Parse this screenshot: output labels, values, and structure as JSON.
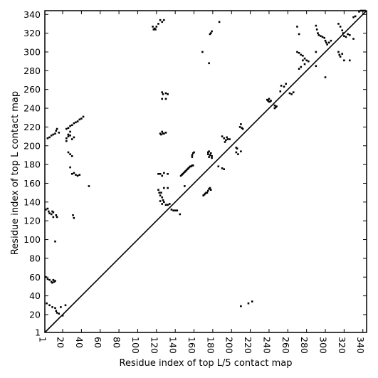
{
  "chart_data": {
    "type": "scatter",
    "title": "",
    "xlabel": "Residue index of top L/5 contact map",
    "ylabel": "Residue index of top L contact map",
    "xlim": [
      1,
      344
    ],
    "ylim": [
      1,
      344
    ],
    "grid": false,
    "x_ticks": [
      1,
      20,
      40,
      60,
      80,
      100,
      120,
      140,
      160,
      180,
      200,
      220,
      240,
      260,
      280,
      300,
      320,
      340
    ],
    "y_ticks": [
      1,
      20,
      40,
      60,
      80,
      100,
      120,
      140,
      160,
      180,
      200,
      220,
      240,
      260,
      280,
      300,
      320,
      340
    ],
    "diagonal": true,
    "marker_color": "#000000",
    "upper_triangle_points": [
      [
        116,
        327
      ],
      [
        118,
        325
      ],
      [
        120,
        327
      ],
      [
        122,
        330
      ],
      [
        124,
        334
      ],
      [
        126,
        332
      ],
      [
        128,
        334
      ],
      [
        119,
        324
      ],
      [
        117,
        324
      ],
      [
        169,
        300
      ],
      [
        176,
        288
      ],
      [
        177,
        319
      ],
      [
        178,
        320
      ],
      [
        179,
        322
      ],
      [
        187,
        332
      ],
      [
        125,
        212
      ],
      [
        126,
        215
      ],
      [
        128,
        213
      ],
      [
        130,
        214
      ],
      [
        127,
        213
      ],
      [
        124,
        213
      ],
      [
        126,
        257
      ],
      [
        127,
        255
      ],
      [
        130,
        256
      ],
      [
        132,
        255
      ],
      [
        126,
        250
      ],
      [
        130,
        250
      ],
      [
        176,
        188
      ],
      [
        177,
        190
      ],
      [
        178,
        192
      ],
      [
        175,
        193
      ],
      [
        176,
        194
      ],
      [
        175,
        191
      ],
      [
        179,
        189
      ],
      [
        179,
        187
      ],
      [
        190,
        210
      ],
      [
        192,
        208
      ],
      [
        194,
        206
      ],
      [
        195,
        209
      ],
      [
        196,
        207
      ],
      [
        198,
        207
      ],
      [
        193,
        204
      ],
      [
        209,
        220
      ],
      [
        210,
        223
      ],
      [
        211,
        219
      ],
      [
        212,
        218
      ],
      [
        171,
        148
      ],
      [
        172,
        149
      ],
      [
        173,
        150
      ],
      [
        174,
        150
      ],
      [
        175,
        152
      ],
      [
        176,
        154
      ],
      [
        177,
        155
      ],
      [
        178,
        153
      ],
      [
        170,
        147
      ],
      [
        146,
        168
      ],
      [
        147,
        169
      ],
      [
        148,
        170
      ],
      [
        149,
        171
      ],
      [
        150,
        172
      ],
      [
        151,
        173
      ],
      [
        152,
        174
      ],
      [
        153,
        175
      ],
      [
        154,
        176
      ],
      [
        155,
        177
      ],
      [
        156,
        178
      ],
      [
        157,
        178
      ],
      [
        158,
        179
      ],
      [
        159,
        179
      ],
      [
        158,
        188
      ],
      [
        158,
        190
      ],
      [
        159,
        192
      ],
      [
        160,
        193
      ],
      [
        205,
        193
      ],
      [
        205,
        198
      ],
      [
        206,
        197
      ],
      [
        207,
        191
      ],
      [
        210,
        194
      ],
      [
        190,
        176
      ],
      [
        186,
        178
      ],
      [
        192,
        175
      ],
      [
        238,
        249
      ],
      [
        239,
        248
      ],
      [
        240,
        247
      ],
      [
        241,
        247
      ],
      [
        242,
        248
      ],
      [
        240,
        250
      ],
      [
        246,
        240
      ],
      [
        247,
        241
      ],
      [
        248,
        242
      ],
      [
        246,
        243
      ],
      [
        252,
        258
      ],
      [
        253,
        264
      ],
      [
        256,
        263
      ],
      [
        258,
        266
      ],
      [
        262,
        256
      ],
      [
        264,
        255
      ],
      [
        266,
        257
      ],
      [
        270,
        300
      ],
      [
        272,
        299
      ],
      [
        274,
        297
      ],
      [
        276,
        296
      ],
      [
        278,
        293
      ],
      [
        280,
        291
      ],
      [
        282,
        290
      ],
      [
        276,
        291
      ],
      [
        278,
        287
      ],
      [
        274,
        284
      ],
      [
        272,
        282
      ],
      [
        270,
        327
      ],
      [
        272,
        319
      ],
      [
        290,
        328
      ],
      [
        291,
        324
      ],
      [
        292,
        320
      ],
      [
        293,
        318
      ],
      [
        295,
        317
      ],
      [
        297,
        316
      ],
      [
        299,
        315
      ],
      [
        300,
        312
      ],
      [
        301,
        310
      ],
      [
        302,
        308
      ],
      [
        304,
        310
      ],
      [
        306,
        312
      ],
      [
        290,
        300
      ],
      [
        290,
        285
      ],
      [
        300,
        273
      ],
      [
        314,
        330
      ],
      [
        316,
        327
      ],
      [
        318,
        323
      ],
      [
        319,
        320
      ],
      [
        320,
        317
      ],
      [
        322,
        316
      ],
      [
        324,
        319
      ],
      [
        326,
        318
      ],
      [
        330,
        314
      ],
      [
        314,
        300
      ],
      [
        315,
        297
      ],
      [
        316,
        295
      ],
      [
        318,
        298
      ],
      [
        320,
        291
      ],
      [
        326,
        291
      ],
      [
        330,
        337
      ],
      [
        332,
        338
      ],
      [
        336,
        343
      ],
      [
        338,
        344
      ],
      [
        340,
        344
      ],
      [
        342,
        344
      ]
    ],
    "lower_triangle_points": [
      [
        2,
        132
      ],
      [
        4,
        133
      ],
      [
        5,
        130
      ],
      [
        6,
        128
      ],
      [
        8,
        127
      ],
      [
        9,
        130
      ],
      [
        10,
        124
      ],
      [
        10,
        129
      ],
      [
        13,
        126
      ],
      [
        14,
        124
      ],
      [
        12,
        98
      ],
      [
        2,
        60
      ],
      [
        4,
        58
      ],
      [
        6,
        57
      ],
      [
        8,
        55
      ],
      [
        9,
        54
      ],
      [
        10,
        57
      ],
      [
        11,
        55
      ],
      [
        12,
        56
      ],
      [
        3,
        32
      ],
      [
        6,
        30
      ],
      [
        9,
        28
      ],
      [
        12,
        27
      ],
      [
        13,
        24
      ],
      [
        14,
        22
      ],
      [
        16,
        21
      ],
      [
        18,
        28
      ],
      [
        20,
        19
      ],
      [
        23,
        30
      ],
      [
        4,
        208
      ],
      [
        6,
        209
      ],
      [
        8,
        211
      ],
      [
        10,
        212
      ],
      [
        12,
        213
      ],
      [
        13,
        216
      ],
      [
        14,
        218
      ],
      [
        16,
        214
      ],
      [
        24,
        218
      ],
      [
        26,
        219
      ],
      [
        28,
        221
      ],
      [
        30,
        222
      ],
      [
        32,
        224
      ],
      [
        34,
        225
      ],
      [
        36,
        226
      ],
      [
        38,
        228
      ],
      [
        40,
        229
      ],
      [
        42,
        231
      ],
      [
        24,
        205
      ],
      [
        24,
        208
      ],
      [
        26,
        210
      ],
      [
        28,
        211
      ],
      [
        26,
        212
      ],
      [
        28,
        215
      ],
      [
        30,
        207
      ],
      [
        32,
        209
      ],
      [
        26,
        193
      ],
      [
        28,
        191
      ],
      [
        30,
        189
      ],
      [
        28,
        177
      ],
      [
        30,
        170
      ],
      [
        32,
        171
      ],
      [
        34,
        169
      ],
      [
        36,
        168
      ],
      [
        38,
        169
      ],
      [
        31,
        126
      ],
      [
        32,
        123
      ],
      [
        48,
        157
      ],
      [
        122,
        153
      ],
      [
        123,
        150
      ],
      [
        124,
        147
      ],
      [
        125,
        150
      ],
      [
        126,
        145
      ],
      [
        127,
        142
      ],
      [
        128,
        140
      ],
      [
        130,
        137
      ],
      [
        132,
        137
      ],
      [
        134,
        138
      ],
      [
        126,
        138
      ],
      [
        124,
        141
      ],
      [
        128,
        155
      ],
      [
        132,
        155
      ],
      [
        122,
        170
      ],
      [
        124,
        170
      ],
      [
        126,
        168
      ],
      [
        128,
        171
      ],
      [
        132,
        170
      ],
      [
        136,
        132
      ],
      [
        138,
        131
      ],
      [
        140,
        131
      ],
      [
        142,
        131
      ],
      [
        145,
        127
      ],
      [
        150,
        157
      ],
      [
        210,
        29
      ],
      [
        222,
        34
      ],
      [
        218,
        32
      ]
    ]
  }
}
